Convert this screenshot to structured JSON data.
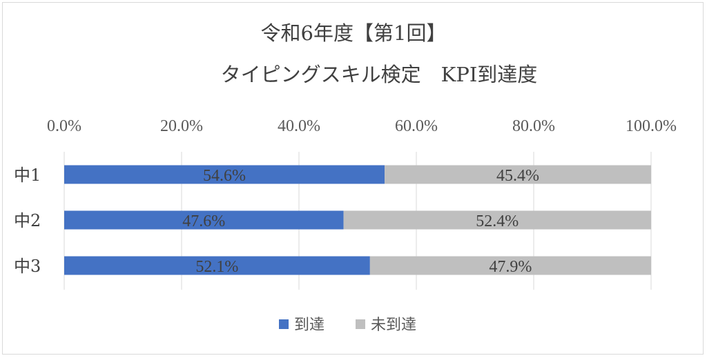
{
  "chart_data": {
    "type": "bar",
    "orientation": "horizontal",
    "stacked": "percent",
    "title": "令和6年度【第1回】",
    "subtitle": "タイピングスキル検定　KPI到達度",
    "categories": [
      "中1",
      "中2",
      "中3"
    ],
    "series": [
      {
        "name": "到達",
        "color": "#4472c4",
        "values": [
          54.6,
          47.6,
          52.1
        ],
        "labels": [
          "54.6%",
          "47.6%",
          "52.1%"
        ]
      },
      {
        "name": "未到達",
        "color": "#bfbfbf",
        "values": [
          45.4,
          52.4,
          47.9
        ],
        "labels": [
          "45.4%",
          "52.4%",
          "47.9%"
        ]
      }
    ],
    "xlim": [
      0,
      100
    ],
    "x_ticks": [
      0,
      20,
      40,
      60,
      80,
      100
    ],
    "x_tick_labels": [
      "0.0%",
      "20.0%",
      "40.0%",
      "60.0%",
      "80.0%",
      "100.0%"
    ],
    "x_axis_position": "top",
    "grid": true,
    "legend": "bottom"
  }
}
